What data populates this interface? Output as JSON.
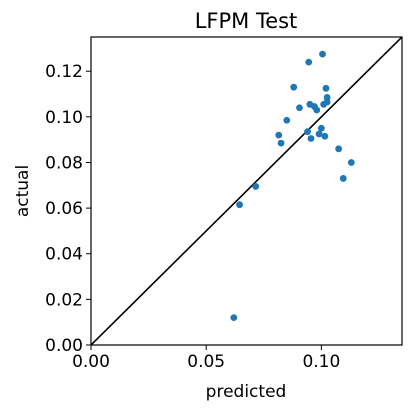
{
  "chart_data": {
    "type": "scatter",
    "title": "LFPM Test",
    "xlabel": "predicted",
    "ylabel": "actual",
    "xlim": [
      0,
      0.135
    ],
    "ylim": [
      0,
      0.135
    ],
    "xticks": [
      0.0,
      0.05,
      0.1
    ],
    "xtick_labels": [
      "0.00",
      "0.05",
      "0.10"
    ],
    "yticks": [
      0.0,
      0.02,
      0.04,
      0.06,
      0.08,
      0.1,
      0.12
    ],
    "ytick_labels": [
      "0.00",
      "0.02",
      "0.04",
      "0.06",
      "0.08",
      "0.10",
      "0.12"
    ],
    "grid": false,
    "reference_line": "y = x",
    "marker_color": "#1f77b4",
    "line_color": "#000000",
    "points": [
      {
        "x": 0.062,
        "y": 0.012
      },
      {
        "x": 0.0645,
        "y": 0.0615
      },
      {
        "x": 0.0715,
        "y": 0.0695
      },
      {
        "x": 0.0815,
        "y": 0.092
      },
      {
        "x": 0.0825,
        "y": 0.0885
      },
      {
        "x": 0.085,
        "y": 0.0985
      },
      {
        "x": 0.088,
        "y": 0.113
      },
      {
        "x": 0.0905,
        "y": 0.104
      },
      {
        "x": 0.094,
        "y": 0.0935
      },
      {
        "x": 0.0945,
        "y": 0.124
      },
      {
        "x": 0.095,
        "y": 0.1055
      },
      {
        "x": 0.0955,
        "y": 0.0905
      },
      {
        "x": 0.097,
        "y": 0.1045
      },
      {
        "x": 0.098,
        "y": 0.103
      },
      {
        "x": 0.099,
        "y": 0.0925
      },
      {
        "x": 0.1,
        "y": 0.095
      },
      {
        "x": 0.1005,
        "y": 0.1275
      },
      {
        "x": 0.101,
        "y": 0.1055
      },
      {
        "x": 0.1015,
        "y": 0.0915
      },
      {
        "x": 0.102,
        "y": 0.1125
      },
      {
        "x": 0.1025,
        "y": 0.1085
      },
      {
        "x": 0.1025,
        "y": 0.1065
      },
      {
        "x": 0.1075,
        "y": 0.086
      },
      {
        "x": 0.1095,
        "y": 0.073
      },
      {
        "x": 0.113,
        "y": 0.08
      }
    ]
  }
}
